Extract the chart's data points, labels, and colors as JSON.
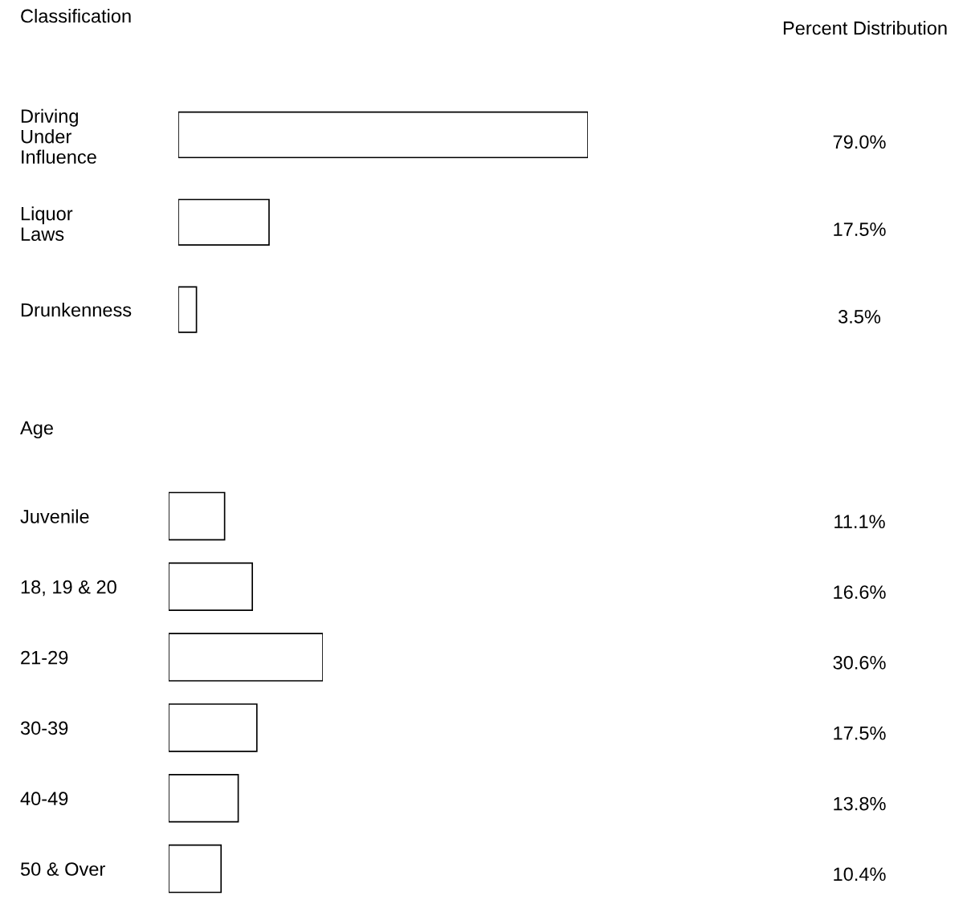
{
  "chart_data": [
    {
      "type": "bar",
      "orientation": "horizontal",
      "title": "Classification",
      "annotations": [
        "Percent Distribution"
      ],
      "categories": [
        "Driving\nUnder\nInfluence",
        "Liquor\nLaws",
        "Drunkenness"
      ],
      "values": [
        79.0,
        17.5,
        3.5
      ],
      "color": "#ffffff",
      "value_labels": [
        "79.0%",
        "17.5%",
        "3.5%"
      ]
    },
    {
      "type": "bar",
      "orientation": "horizontal",
      "title": "Age",
      "categories": [
        "Juvenile",
        "18, 19 & 20",
        "21-29",
        "30-39",
        "40-49",
        "50 & Over"
      ],
      "values": [
        11.1,
        16.6,
        30.6,
        17.5,
        13.8,
        10.4
      ],
      "color": "#ffffff",
      "value_labels": [
        "11.1%",
        "16.6%",
        "30.6%",
        "17.5%",
        "13.8%",
        "10.4%"
      ]
    }
  ]
}
